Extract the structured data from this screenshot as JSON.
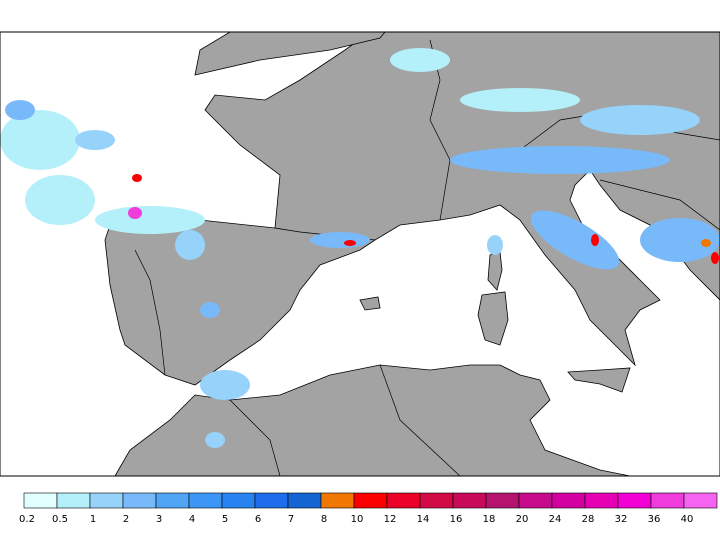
{
  "colorbar": {
    "labels": [
      0.2,
      0.5,
      1,
      2,
      3,
      4,
      5,
      6,
      7,
      8,
      10,
      12,
      14,
      16,
      18,
      20,
      24,
      28,
      32,
      36,
      40
    ],
    "colors": [
      "#e1ffff",
      "#b4f0fa",
      "#96d2fa",
      "#78b9fa",
      "#50a5f5",
      "#3c96f5",
      "#2882f0",
      "#1e6eeb",
      "#1464d2",
      "#f07800",
      "#fa0000",
      "#eb0028",
      "#d20a46",
      "#c80a5a",
      "#b4146e",
      "#c80a8c",
      "#d200a0",
      "#e600b4",
      "#f000d2",
      "#f03cdc",
      "#f564f0"
    ]
  }
}
